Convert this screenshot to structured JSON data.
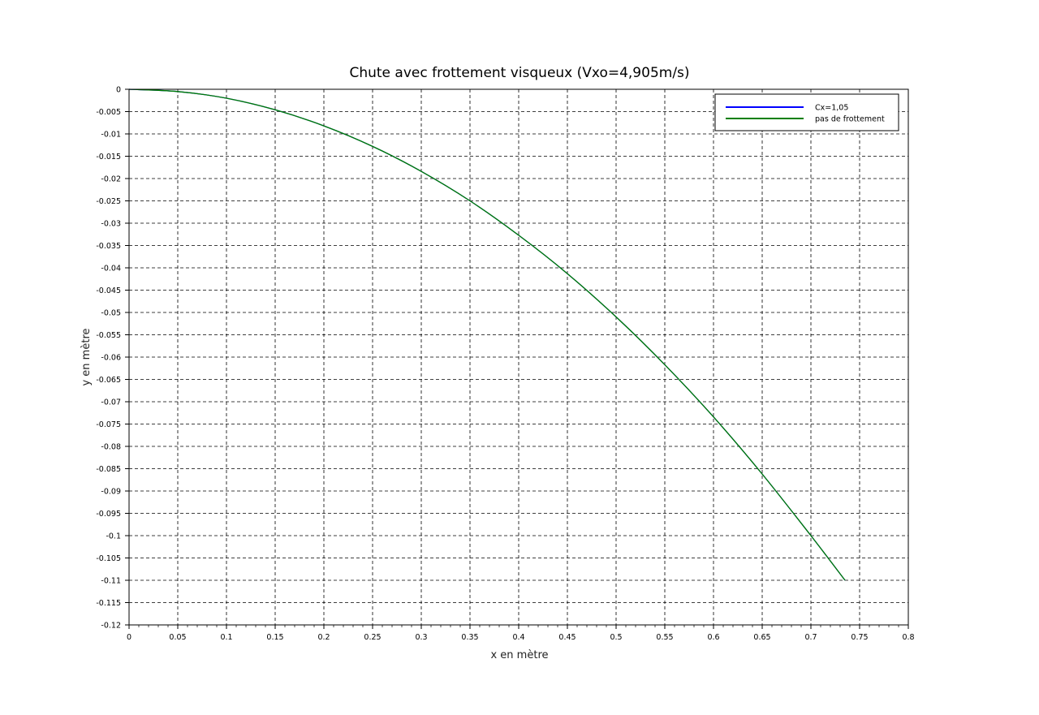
{
  "chart_data": {
    "type": "line",
    "title": "Chute avec frottement visqueux (Vxo=4,905m/s)",
    "xlabel": "x en mètre",
    "ylabel": "y en mètre",
    "xlim": [
      0,
      0.8
    ],
    "ylim": [
      -0.12,
      0
    ],
    "x_ticks": [
      "0",
      "0.05",
      "0.1",
      "0.15",
      "0.2",
      "0.25",
      "0.3",
      "0.35",
      "0.4",
      "0.45",
      "0.5",
      "0.55",
      "0.6",
      "0.65",
      "0.7",
      "0.75",
      "0.8"
    ],
    "y_ticks": [
      "0",
      "-0.005",
      "-0.01",
      "-0.015",
      "-0.02",
      "-0.025",
      "-0.03",
      "-0.035",
      "-0.04",
      "-0.045",
      "-0.05",
      "-0.055",
      "-0.06",
      "-0.065",
      "-0.07",
      "-0.075",
      "-0.08",
      "-0.085",
      "-0.09",
      "-0.095",
      "-0.1",
      "-0.105",
      "-0.11",
      "-0.115",
      "-0.12"
    ],
    "grid": true,
    "legend_position": "top-right",
    "series": [
      {
        "name": "Cx=1,05",
        "color": "#0000ff",
        "x": [
          0,
          0.05,
          0.1,
          0.15,
          0.2,
          0.25,
          0.3,
          0.35,
          0.4,
          0.45,
          0.5,
          0.55,
          0.6,
          0.65,
          0.7,
          0.735
        ],
        "y": [
          0,
          -0.0005,
          -0.002,
          -0.0046,
          -0.0082,
          -0.0128,
          -0.0184,
          -0.025,
          -0.0327,
          -0.0413,
          -0.051,
          -0.0617,
          -0.0734,
          -0.0862,
          -0.1,
          -0.11
        ]
      },
      {
        "name": "pas de frottement",
        "color": "#007f00",
        "x": [
          0,
          0.05,
          0.1,
          0.15,
          0.2,
          0.25,
          0.3,
          0.35,
          0.4,
          0.45,
          0.5,
          0.55,
          0.6,
          0.65,
          0.7,
          0.735
        ],
        "y": [
          0,
          -0.0005,
          -0.002,
          -0.0046,
          -0.0082,
          -0.0128,
          -0.0184,
          -0.025,
          -0.0327,
          -0.0413,
          -0.051,
          -0.0617,
          -0.0734,
          -0.0862,
          -0.1,
          -0.11
        ]
      }
    ]
  }
}
